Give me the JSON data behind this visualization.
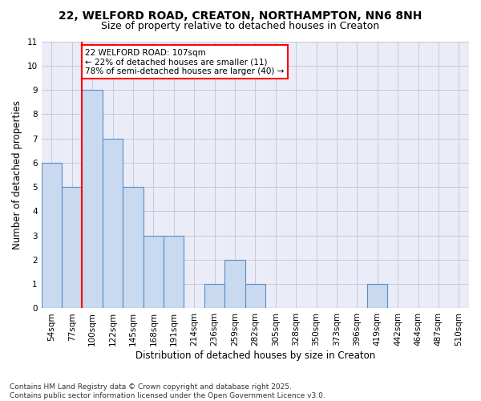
{
  "title1": "22, WELFORD ROAD, CREATON, NORTHAMPTON, NN6 8NH",
  "title2": "Size of property relative to detached houses in Creaton",
  "xlabel": "Distribution of detached houses by size in Creaton",
  "ylabel": "Number of detached properties",
  "categories": [
    "54sqm",
    "77sqm",
    "100sqm",
    "122sqm",
    "145sqm",
    "168sqm",
    "191sqm",
    "214sqm",
    "236sqm",
    "259sqm",
    "282sqm",
    "305sqm",
    "328sqm",
    "350sqm",
    "373sqm",
    "396sqm",
    "419sqm",
    "442sqm",
    "464sqm",
    "487sqm",
    "510sqm"
  ],
  "values": [
    6,
    5,
    9,
    7,
    5,
    3,
    3,
    0,
    1,
    2,
    1,
    0,
    0,
    0,
    0,
    0,
    1,
    0,
    0,
    0,
    0
  ],
  "bar_color": "#c9d9f0",
  "bar_edge_color": "#5b8ec4",
  "annotation_text": "22 WELFORD ROAD: 107sqm\n← 22% of detached houses are smaller (11)\n78% of semi-detached houses are larger (40) →",
  "annotation_box_color": "white",
  "annotation_box_edge_color": "red",
  "ylim": [
    0,
    11
  ],
  "yticks": [
    0,
    1,
    2,
    3,
    4,
    5,
    6,
    7,
    8,
    9,
    10,
    11
  ],
  "grid_color": "#c8c8d8",
  "bg_color": "#eaecf8",
  "footer_text": "Contains HM Land Registry data © Crown copyright and database right 2025.\nContains public sector information licensed under the Open Government Licence v3.0.",
  "title_fontsize": 10,
  "subtitle_fontsize": 9,
  "axis_label_fontsize": 8.5,
  "tick_fontsize": 7.5,
  "annotation_fontsize": 7.5,
  "footer_fontsize": 6.5,
  "red_line_index": 2
}
